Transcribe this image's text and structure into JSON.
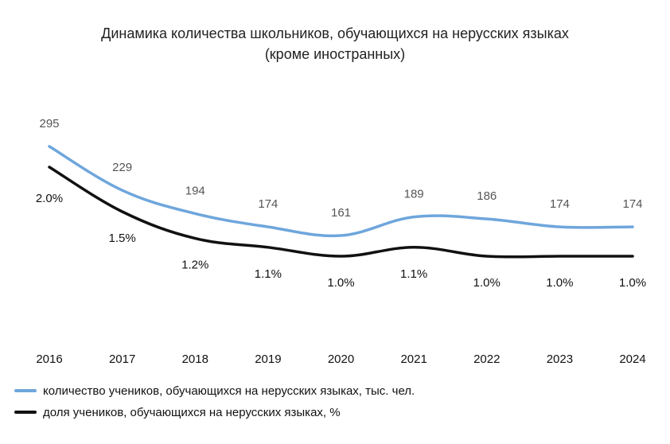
{
  "chart_data": {
    "type": "line",
    "title_lines": [
      "Динамика количества школьников, обучающихся на нерусских языках",
      "(кроме  иностранных)"
    ],
    "categories": [
      "2016",
      "2017",
      "2018",
      "2019",
      "2020",
      "2021",
      "2022",
      "2023",
      "2024"
    ],
    "series": [
      {
        "name": "количество учеников, обучающихся на нерусских языках, тыс. чел.",
        "values": [
          295,
          229,
          194,
          174,
          161,
          189,
          186,
          174,
          174
        ],
        "labels": [
          "295",
          "229",
          "194",
          "174",
          "161",
          "189",
          "186",
          "174",
          "174"
        ],
        "color": "#6ea6dc"
      },
      {
        "name": "доля учеников, обучающихся на нерусских языках, %",
        "values": [
          2.0,
          1.5,
          1.2,
          1.1,
          1.0,
          1.1,
          1.0,
          1.0,
          1.0
        ],
        "labels": [
          "2.0%",
          "1.5%",
          "1.2%",
          "1.1%",
          "1.0%",
          "1.1%",
          "1.0%",
          "1.0%",
          "1.0%"
        ],
        "color": "#111111"
      }
    ],
    "xlabel": "",
    "ylabel": "",
    "grid": false,
    "legend_position": "bottom-left"
  }
}
